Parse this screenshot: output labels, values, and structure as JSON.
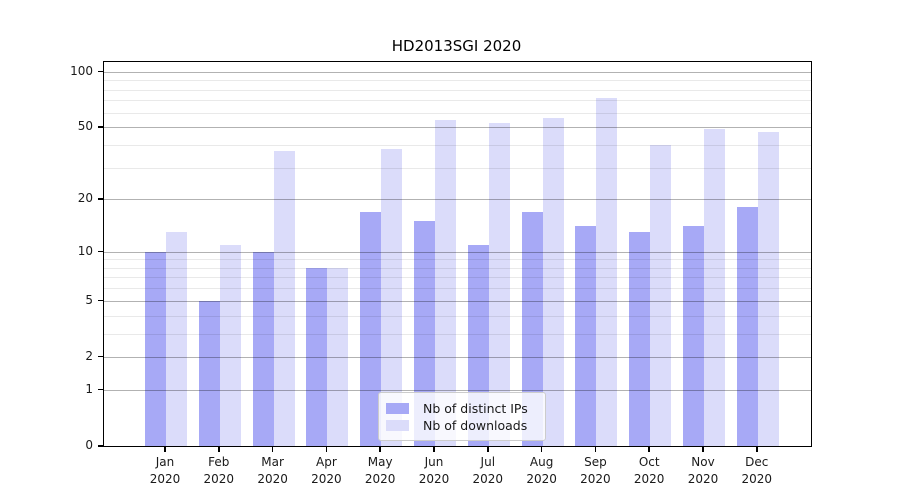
{
  "chart_data": {
    "type": "bar",
    "title": "HD2013SGI 2020",
    "categories": [
      "Jan",
      "Feb",
      "Mar",
      "Apr",
      "May",
      "Jun",
      "Jul",
      "Aug",
      "Sep",
      "Oct",
      "Nov",
      "Dec"
    ],
    "category_year": "2020",
    "series": [
      {
        "name": "Nb of distinct IPs",
        "color": "#a7a9f6",
        "values": [
          10,
          5,
          10,
          8,
          17,
          15,
          11,
          17,
          14,
          13,
          14,
          18
        ]
      },
      {
        "name": "Nb of downloads",
        "color": "#dbdcfa",
        "values": [
          13,
          11,
          37,
          8,
          38,
          55,
          53,
          56,
          72,
          40,
          49,
          47
        ]
      }
    ],
    "yscale": "log(value+1), symlog-like",
    "y_major_ticks": [
      0,
      1,
      2,
      5,
      10,
      20,
      50,
      100
    ],
    "y_minor_ticks": [
      3,
      4,
      6,
      7,
      8,
      9,
      30,
      40,
      60,
      70,
      80,
      90
    ],
    "ylim": [
      0,
      113
    ],
    "xlabel": "",
    "ylabel": "",
    "grid": true,
    "legend_position": "lower center, inside axes"
  },
  "colors": {
    "bar_distinct_ips": "#a7a9f6",
    "bar_downloads": "#dbdcfa",
    "axis": "#000000",
    "major_grid": "#b0b0b0",
    "minor_grid": "#e9e9e9",
    "legend_border": "#cccccc",
    "text": "#1a1a1a"
  }
}
